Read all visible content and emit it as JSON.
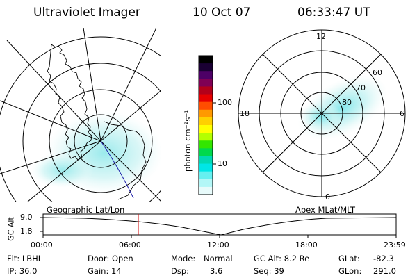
{
  "header": {
    "title": "Ultraviolet Imager",
    "date": "10 Oct 07",
    "time": "06:33:47 UT"
  },
  "colorbar": {
    "unit_label": "photon cm⁻²s⁻¹",
    "ticks": [
      "100",
      "10"
    ],
    "colors": [
      "#000000",
      "#1a0033",
      "#4d0066",
      "#800055",
      "#b3001a",
      "#e60000",
      "#ff4d00",
      "#ff9900",
      "#ffd000",
      "#ffff00",
      "#b3ff00",
      "#33e600",
      "#00d94d",
      "#00d9b3",
      "#00e6e6",
      "#66f0f0",
      "#b3f7f7",
      "#e8fbfb"
    ]
  },
  "left_map": {
    "label": "Geographic Lat/Lon"
  },
  "right_map": {
    "label": "Apex MLat/MLT",
    "mlt_labels": {
      "top": "12",
      "left": "18",
      "right": "6",
      "bottom": "0"
    },
    "lat_labels": [
      "60",
      "70",
      "80"
    ]
  },
  "altitude_plot": {
    "ylabel": "GC Alt",
    "yticks": [
      "9.0",
      "1.8"
    ],
    "xticks": [
      "00:00",
      "06:00",
      "12:00",
      "18:00",
      "23:59"
    ],
    "current_time_color": "#cc0000"
  },
  "info": {
    "flt": "Flt: LBHL",
    "ip": "IP: 36.0",
    "door": "Door: Open",
    "gain": "Gain: 14",
    "mode_label": "Mode:",
    "mode_value": "Normal",
    "dsp_label": "Dsp:",
    "dsp_value": "3.6",
    "gc_alt": "GC Alt: 8.2 Re",
    "seq": "Seq: 39",
    "glat_label": "GLat:",
    "glat_value": "-82.3",
    "glon_label": "GLon:",
    "glon_value": "291.0"
  }
}
